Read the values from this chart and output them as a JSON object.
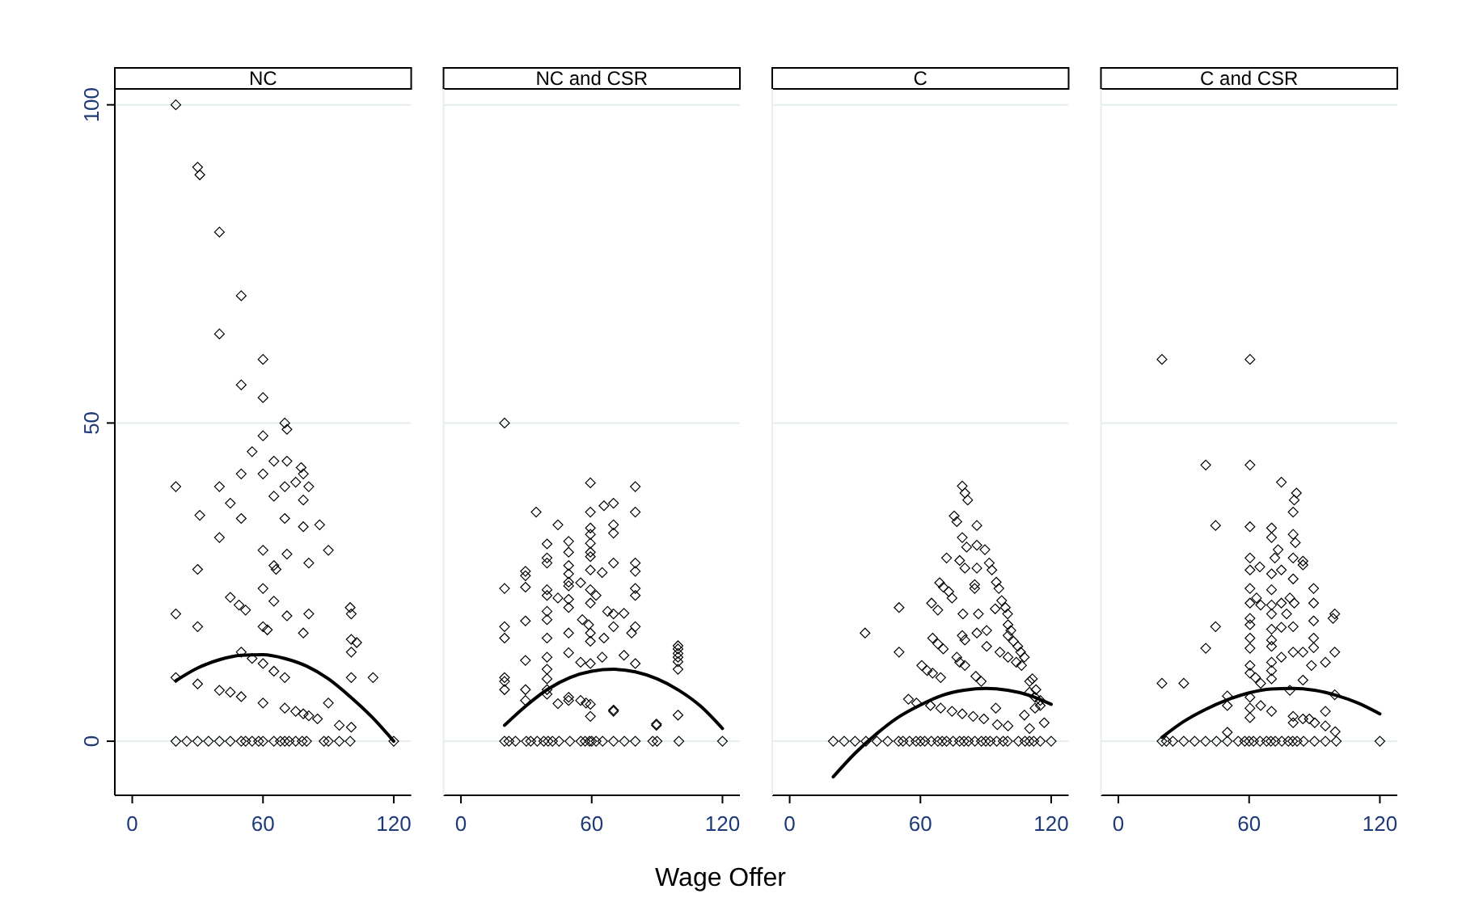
{
  "chart_data": [
    {
      "type": "scatter",
      "title": "NC",
      "xlim": [
        -8,
        128
      ],
      "xticks": [
        0,
        60,
        120
      ],
      "ylim": [
        -8.5,
        102.5
      ],
      "yticks": [
        0,
        50,
        100
      ],
      "grid": "y",
      "series": [
        {
          "color": "#000000",
          "marker": "diamond",
          "x": [
            20,
            30,
            31,
            40,
            50,
            40,
            60,
            50,
            60,
            70,
            71,
            60,
            55,
            65,
            71,
            77.5,
            78.5,
            50,
            60,
            20,
            40,
            70,
            75,
            81,
            45,
            65,
            78.5,
            31,
            50,
            70,
            78.5,
            86,
            40,
            60,
            90,
            71,
            81,
            65,
            66,
            30,
            60,
            45,
            49,
            52,
            65,
            100,
            100.5,
            20,
            71,
            81,
            30,
            60,
            62,
            78.5,
            100.5,
            103,
            100.5,
            50,
            55,
            60,
            65,
            20,
            30,
            70,
            100.5,
            110.5,
            40,
            45,
            50,
            60,
            90,
            70,
            75,
            78.5,
            81,
            85,
            95,
            100.5,
            20,
            25,
            30,
            35,
            40,
            45,
            50,
            52,
            55,
            58,
            60,
            65,
            68,
            70,
            72,
            75,
            78,
            80,
            88,
            90,
            95,
            100,
            120
          ],
          "values": [
            100,
            90.2,
            89,
            80,
            70,
            64,
            60,
            56,
            54,
            50,
            49,
            48,
            45.5,
            44,
            44,
            43,
            42,
            42,
            42,
            40,
            40,
            40,
            40.7,
            40,
            37.4,
            38.5,
            37.9,
            35.5,
            35,
            35,
            33.7,
            34,
            32,
            30,
            30,
            29.4,
            28,
            27.6,
            27,
            27,
            24,
            22.6,
            21.4,
            20.6,
            22,
            21,
            20,
            20,
            19.7,
            20,
            18,
            18,
            17.5,
            17,
            16,
            15.5,
            14,
            14,
            13,
            12.2,
            11,
            10,
            9,
            10,
            10,
            10,
            8,
            7.7,
            7,
            6,
            6,
            5.2,
            4.7,
            4.3,
            4,
            3.5,
            2.5,
            2.2,
            0,
            0,
            0,
            0,
            0,
            0,
            0,
            0,
            0,
            0,
            0,
            0,
            0,
            0,
            0,
            0,
            0,
            0,
            0,
            0,
            0,
            0,
            0
          ]
        },
        {
          "type": "line",
          "color": "#000000",
          "x": [
            20,
            30,
            40,
            50,
            60,
            70,
            80,
            90,
            100,
            110,
            120
          ],
          "values": [
            9.5,
            11.5,
            12.8,
            13.5,
            13.6,
            13,
            11.8,
            9.8,
            7,
            3.8,
            0
          ]
        }
      ]
    },
    {
      "type": "scatter",
      "title": "NC and CSR",
      "xlabel": "Wage Offer",
      "xlim": [
        -8,
        128
      ],
      "xticks": [
        0,
        60,
        120
      ],
      "ylim": [
        -8.5,
        102.5
      ],
      "yticks": [
        0,
        50,
        100
      ],
      "grid": "y",
      "tick_labels": "x",
      "series": [
        {
          "color": "#000000",
          "marker": "diamond",
          "x": [
            20,
            59.4,
            80,
            65.6,
            70,
            34.5,
            59.4,
            80,
            44.5,
            70,
            70,
            59.4,
            59.4,
            39.5,
            49.4,
            49.4,
            59.4,
            59.4,
            59.4,
            39.5,
            39.5,
            49.4,
            49.4,
            29.6,
            29.6,
            59.4,
            64.8,
            70,
            80,
            80,
            20,
            29.6,
            39.5,
            39.5,
            49.4,
            49.4,
            54.9,
            59.4,
            62,
            80,
            80,
            44.5,
            49.4,
            59.4,
            49.4,
            39.5,
            67.3,
            70,
            74.8,
            39.5,
            29.6,
            55.7,
            58.6,
            70,
            80,
            20,
            20,
            39.5,
            49.4,
            59.4,
            78.3,
            59.4,
            65.6,
            99.6,
            99.6,
            99.6,
            99.6,
            99.6,
            99.6,
            29.6,
            39.5,
            49.4,
            54.9,
            59.4,
            64.8,
            74.8,
            80,
            20,
            20,
            20,
            29.6,
            39.5,
            39.5,
            39.5,
            39.5,
            29.6,
            44.5,
            49.4,
            49.4,
            54.9,
            57.4,
            59.4,
            59.4,
            70,
            70,
            89.7,
            89.7,
            99.6,
            20,
            22,
            25,
            30,
            32,
            35,
            38,
            40,
            42,
            45,
            50,
            55,
            57,
            59,
            60,
            62,
            65,
            70,
            75,
            80,
            88,
            90,
            100,
            120
          ],
          "values": [
            50,
            40.6,
            40,
            37,
            37.4,
            36,
            36,
            36,
            34,
            34,
            32.7,
            33.5,
            32.5,
            31,
            31.4,
            29.7,
            31.1,
            29.7,
            29,
            28.8,
            28,
            27.6,
            26.3,
            26.7,
            26,
            26.9,
            26.5,
            28,
            28,
            26.7,
            24,
            24.2,
            23.8,
            22.9,
            25,
            24.4,
            24.9,
            23.8,
            22.9,
            24,
            22.9,
            22.5,
            22.3,
            21.7,
            21,
            20.4,
            20.4,
            20,
            20.1,
            19.1,
            18.9,
            19.1,
            18.3,
            18,
            18,
            18,
            16.2,
            16.2,
            17,
            17,
            17,
            15.7,
            16.2,
            15,
            14.5,
            13.8,
            13.2,
            12.5,
            11.3,
            12.7,
            13.2,
            13.9,
            12.4,
            12.2,
            13.2,
            13.5,
            12.2,
            10,
            9.4,
            8.1,
            8.1,
            11.3,
            9.8,
            8.1,
            7.4,
            6.4,
            5.9,
            6.9,
            6.4,
            6.4,
            6,
            5.8,
            3.9,
            4.9,
            4.7,
            2.7,
            2.5,
            4.1,
            0,
            0,
            0,
            0,
            0,
            0,
            0,
            0,
            0,
            0,
            0,
            0,
            0,
            0,
            0,
            0,
            0,
            0,
            0,
            0,
            0,
            0,
            0,
            0
          ]
        },
        {
          "type": "line",
          "color": "#000000",
          "x": [
            20,
            30,
            40,
            50,
            60,
            70,
            80,
            90,
            100,
            110,
            120
          ],
          "values": [
            2.5,
            5.6,
            8.2,
            10,
            11,
            11.3,
            10.9,
            9.8,
            8,
            5.5,
            2
          ]
        }
      ]
    },
    {
      "type": "scatter",
      "title": "C",
      "xlim": [
        -8,
        128
      ],
      "xticks": [
        0,
        60,
        120
      ],
      "ylim": [
        -8.5,
        102.5
      ],
      "yticks": [
        0,
        50,
        100
      ],
      "grid": "y",
      "tick_labels": "x",
      "series": [
        {
          "color": "#000000",
          "marker": "diamond",
          "x": [
            79.2,
            80.4,
            81.7,
            75.5,
            76.7,
            85.9,
            79.2,
            81.2,
            85.9,
            89.6,
            72,
            78,
            80.4,
            85.9,
            91.6,
            92.8,
            68.8,
            70.5,
            73,
            84.9,
            84.9,
            94.8,
            96,
            74.5,
            65.1,
            68,
            50.2,
            97.3,
            99,
            94.3,
            79.5,
            86.6,
            100,
            34.6,
            65.6,
            68,
            70.5,
            79.2,
            80.4,
            85.9,
            90.4,
            90.4,
            100.2,
            101.5,
            100.2,
            102.7,
            104.7,
            106,
            50.2,
            76.7,
            78,
            80.4,
            96.5,
            100.2,
            104,
            106.4,
            107.7,
            60.6,
            63.1,
            65.6,
            69.3,
            85.4,
            87.9,
            110.1,
            54.5,
            58.2,
            64.6,
            69.3,
            74.5,
            79.2,
            84.2,
            89.1,
            94.6,
            110.1,
            112.6,
            115,
            112.6,
            107.7,
            116.8,
            95.3,
            100.2,
            110.1,
            111.4,
            113,
            115,
            20,
            25,
            30,
            35,
            40,
            45,
            50,
            52,
            55,
            58,
            60,
            62,
            65,
            68,
            70,
            72,
            75,
            78,
            80,
            82,
            85,
            88,
            90,
            92,
            95,
            98,
            100,
            105,
            108,
            110,
            112,
            115,
            120
          ],
          "values": [
            40.1,
            39,
            37.9,
            35.4,
            34.5,
            33.9,
            32,
            30.5,
            30.8,
            30.1,
            28.8,
            28.4,
            27.2,
            27.2,
            28,
            26.9,
            24.9,
            24.2,
            23.5,
            24.6,
            24,
            25,
            24,
            22.5,
            21.7,
            20.6,
            21,
            22.1,
            21,
            20.8,
            20,
            20,
            20,
            17,
            16.2,
            15.3,
            14.5,
            16.6,
            15.9,
            17,
            17.4,
            14.9,
            18.3,
            17.4,
            16.6,
            15.7,
            14.9,
            14,
            14,
            13.2,
            12.4,
            11.9,
            14,
            13.2,
            12.4,
            11.9,
            13.2,
            11.9,
            11.1,
            10.7,
            10,
            10.2,
            9.4,
            9.4,
            6.6,
            6,
            5.6,
            5.2,
            4.7,
            4.3,
            3.9,
            3.5,
            5.2,
            7.7,
            6.9,
            5.6,
            5.2,
            4.1,
            2.9,
            2.6,
            2.4,
            2,
            9.8,
            8.1,
            6.4,
            0,
            0,
            0,
            0,
            0,
            0,
            0,
            0,
            0,
            0,
            0,
            0,
            0,
            0,
            0,
            0,
            0,
            0,
            0,
            0,
            0,
            0,
            0,
            0,
            0,
            0,
            0,
            0,
            0,
            0,
            0,
            0,
            0
          ]
        },
        {
          "type": "line",
          "color": "#000000",
          "x": [
            20,
            30,
            40,
            50,
            60,
            70,
            80,
            90,
            100,
            110,
            120
          ],
          "values": [
            -5.6,
            -1.9,
            1.2,
            3.8,
            5.7,
            7.2,
            8,
            8.3,
            8,
            7.2,
            5.8
          ]
        }
      ]
    },
    {
      "type": "scatter",
      "title": "C and CSR",
      "xlim": [
        -8,
        128
      ],
      "xticks": [
        0,
        60,
        120
      ],
      "ylim": [
        -8.5,
        102.5
      ],
      "yticks": [
        0,
        50,
        100
      ],
      "grid": "y",
      "tick_labels": "x",
      "series": [
        {
          "color": "#000000",
          "marker": "diamond",
          "x": [
            20,
            60.4,
            40.1,
            60.4,
            74.8,
            81.7,
            80.7,
            80.2,
            44.6,
            60.4,
            70.3,
            70.3,
            80.2,
            81.2,
            73.3,
            71.8,
            60.4,
            60.4,
            64.9,
            70.3,
            74.8,
            80.2,
            84.7,
            84.7,
            80.2,
            89.6,
            60.4,
            70.3,
            63.4,
            65.3,
            60.4,
            70.3,
            74.8,
            78.7,
            80.7,
            89.6,
            99.3,
            98.5,
            60.4,
            60.4,
            70.3,
            77.2,
            70.3,
            74.8,
            80.2,
            89.6,
            89.6,
            44.6,
            40.1,
            60.4,
            60.4,
            70.3,
            70.3,
            74.8,
            80.2,
            84.7,
            89.6,
            99.3,
            95,
            20,
            30,
            60.4,
            60.4,
            62.9,
            65.3,
            70.3,
            70.3,
            70.3,
            84.7,
            88.6,
            50,
            50,
            60.4,
            60.4,
            60.4,
            65.3,
            70.3,
            78.7,
            80.2,
            80.2,
            84.7,
            87.6,
            90.1,
            95,
            95,
            99.5,
            99.3,
            50,
            20,
            22,
            25,
            30,
            35,
            40,
            45,
            50,
            55,
            58,
            60,
            62,
            65,
            68,
            70,
            72,
            75,
            78,
            80,
            82,
            85,
            90,
            95,
            100,
            120
          ],
          "values": [
            60,
            60,
            43.4,
            43.4,
            40.7,
            39,
            37.9,
            36,
            33.9,
            33.7,
            33.5,
            32,
            32.5,
            31.2,
            30.1,
            28.8,
            28.8,
            26.9,
            27.4,
            26.3,
            26.9,
            28.8,
            28.3,
            27.7,
            25.5,
            24,
            24,
            23.8,
            22.5,
            21.4,
            21.7,
            21.4,
            21.7,
            22.5,
            21.7,
            21.7,
            20,
            19.3,
            19.3,
            18.3,
            20,
            20,
            17.6,
            17.9,
            18,
            18.9,
            16.2,
            18,
            14.6,
            16.2,
            14.6,
            15.9,
            14.9,
            13.2,
            14,
            14,
            14.7,
            14,
            12.4,
            9.1,
            9.1,
            11.9,
            10.7,
            10,
            9.1,
            12.4,
            11.1,
            9.8,
            9.6,
            11.9,
            7.1,
            5.6,
            6.9,
            5.2,
            3.7,
            5.6,
            4.7,
            8,
            3.9,
            2.9,
            3.5,
            3.5,
            2.9,
            4.7,
            2.4,
            1.5,
            7.3,
            1.4,
            0,
            0,
            0,
            0,
            0,
            0,
            0,
            0,
            0,
            0,
            0,
            0,
            0,
            0,
            0,
            0,
            0,
            0,
            0,
            0,
            0,
            0,
            0,
            0,
            0
          ]
        },
        {
          "type": "line",
          "color": "#000000",
          "x": [
            20,
            30,
            40,
            50,
            60,
            70,
            80,
            90,
            100,
            110,
            120
          ],
          "values": [
            0.6,
            3.1,
            5,
            6.5,
            7.6,
            8.2,
            8.3,
            8,
            7.2,
            6,
            4.3
          ]
        }
      ]
    }
  ]
}
